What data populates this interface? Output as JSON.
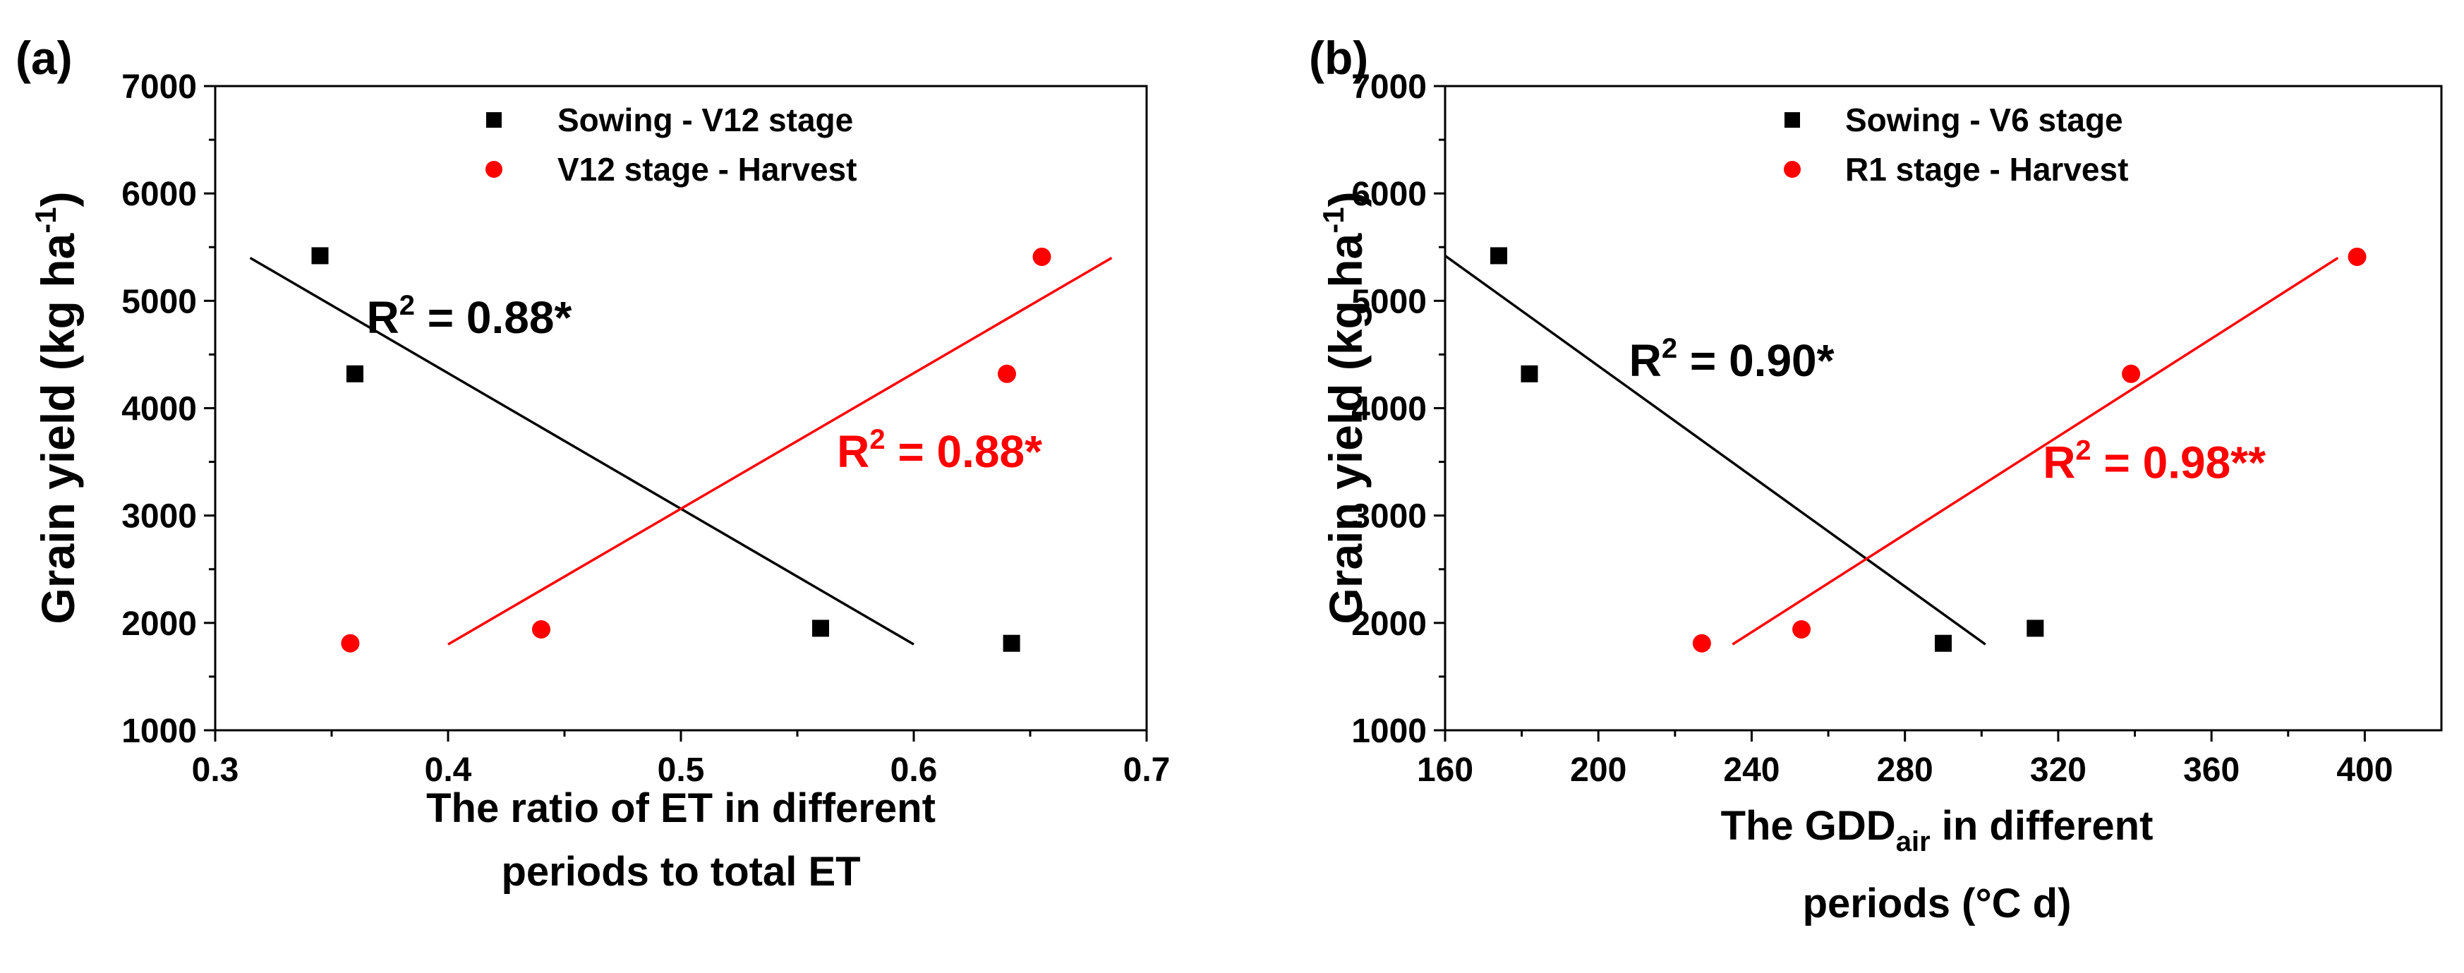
{
  "colors": {
    "black": "#000000",
    "red": "#ff0000"
  },
  "chart_data": [
    {
      "type": "scatter",
      "panel_label": "(a)",
      "xlabel_lines": [
        "The ratio of ET in different",
        "periods to total ET"
      ],
      "ylabel": {
        "main": "Grain yield (kg ha",
        "sup": "-1",
        "tail": ")"
      },
      "xlim": [
        0.3,
        0.7
      ],
      "ylim": [
        1000,
        7000
      ],
      "xticks": [
        0.3,
        0.4,
        0.5,
        0.6,
        0.7
      ],
      "xtick_labels": [
        "0.3",
        "0.4",
        "0.5",
        "0.6",
        "0.7"
      ],
      "yticks": [
        1000,
        2000,
        3000,
        4000,
        5000,
        6000,
        7000
      ],
      "ytick_labels": [
        "1000",
        "2000",
        "3000",
        "4000",
        "5000",
        "6000",
        "7000"
      ],
      "legend_position": "top-center",
      "series": [
        {
          "name": "Sowing - V12 stage",
          "marker": "square",
          "color": "#000000",
          "x": [
            0.345,
            0.36,
            0.56,
            0.642
          ],
          "y": [
            5420,
            4320,
            1950,
            1810
          ],
          "fit": {
            "x": [
              0.315,
              0.6
            ],
            "y": [
              5400,
              1800
            ]
          },
          "r2": {
            "text": "= 0.88*",
            "x": 0.365,
            "y": 4700
          }
        },
        {
          "name": "V12 stage - Harvest",
          "marker": "circle",
          "color": "#ff0000",
          "x": [
            0.358,
            0.44,
            0.64,
            0.655
          ],
          "y": [
            1810,
            1940,
            4320,
            5410
          ],
          "fit": {
            "x": [
              0.4,
              0.685
            ],
            "y": [
              1800,
              5400
            ]
          },
          "r2": {
            "text": "= 0.88*",
            "x": 0.567,
            "y": 3450
          }
        }
      ]
    },
    {
      "type": "scatter",
      "panel_label": "(b)",
      "xlabel_lines": [
        "The GDD",
        "periods (°C d)"
      ],
      "xlabel_sub": "air",
      "xlabel_tail": " in different",
      "ylabel": {
        "main": "Grain yield (kg ha",
        "sup": "-1",
        "tail": ")"
      },
      "xlim": [
        160,
        420
      ],
      "ylim": [
        1000,
        7000
      ],
      "xticks": [
        160,
        200,
        240,
        280,
        320,
        360,
        400
      ],
      "xtick_labels": [
        "160",
        "200",
        "240",
        "280",
        "320",
        "360",
        "400"
      ],
      "yticks": [
        1000,
        2000,
        3000,
        4000,
        5000,
        6000,
        7000
      ],
      "ytick_labels": [
        "1000",
        "2000",
        "3000",
        "4000",
        "5000",
        "6000",
        "7000"
      ],
      "legend_position": "top-center",
      "series": [
        {
          "name": "Sowing - V6 stage",
          "marker": "square",
          "color": "#000000",
          "x": [
            174,
            182,
            290,
            314
          ],
          "y": [
            5420,
            4320,
            1810,
            1950
          ],
          "fit": {
            "x": [
              160,
              301
            ],
            "y": [
              5420,
              1800
            ]
          },
          "r2": {
            "text": "= 0.90*",
            "x": 208,
            "y": 4300
          }
        },
        {
          "name": "R1 stage - Harvest",
          "marker": "circle",
          "color": "#ff0000",
          "x": [
            227,
            253,
            339,
            398
          ],
          "y": [
            1810,
            1940,
            4320,
            5410
          ],
          "fit": {
            "x": [
              235,
              393
            ],
            "y": [
              1800,
              5400
            ]
          },
          "r2": {
            "text": "= 0.98**",
            "x": 316,
            "y": 3350
          }
        }
      ]
    }
  ]
}
